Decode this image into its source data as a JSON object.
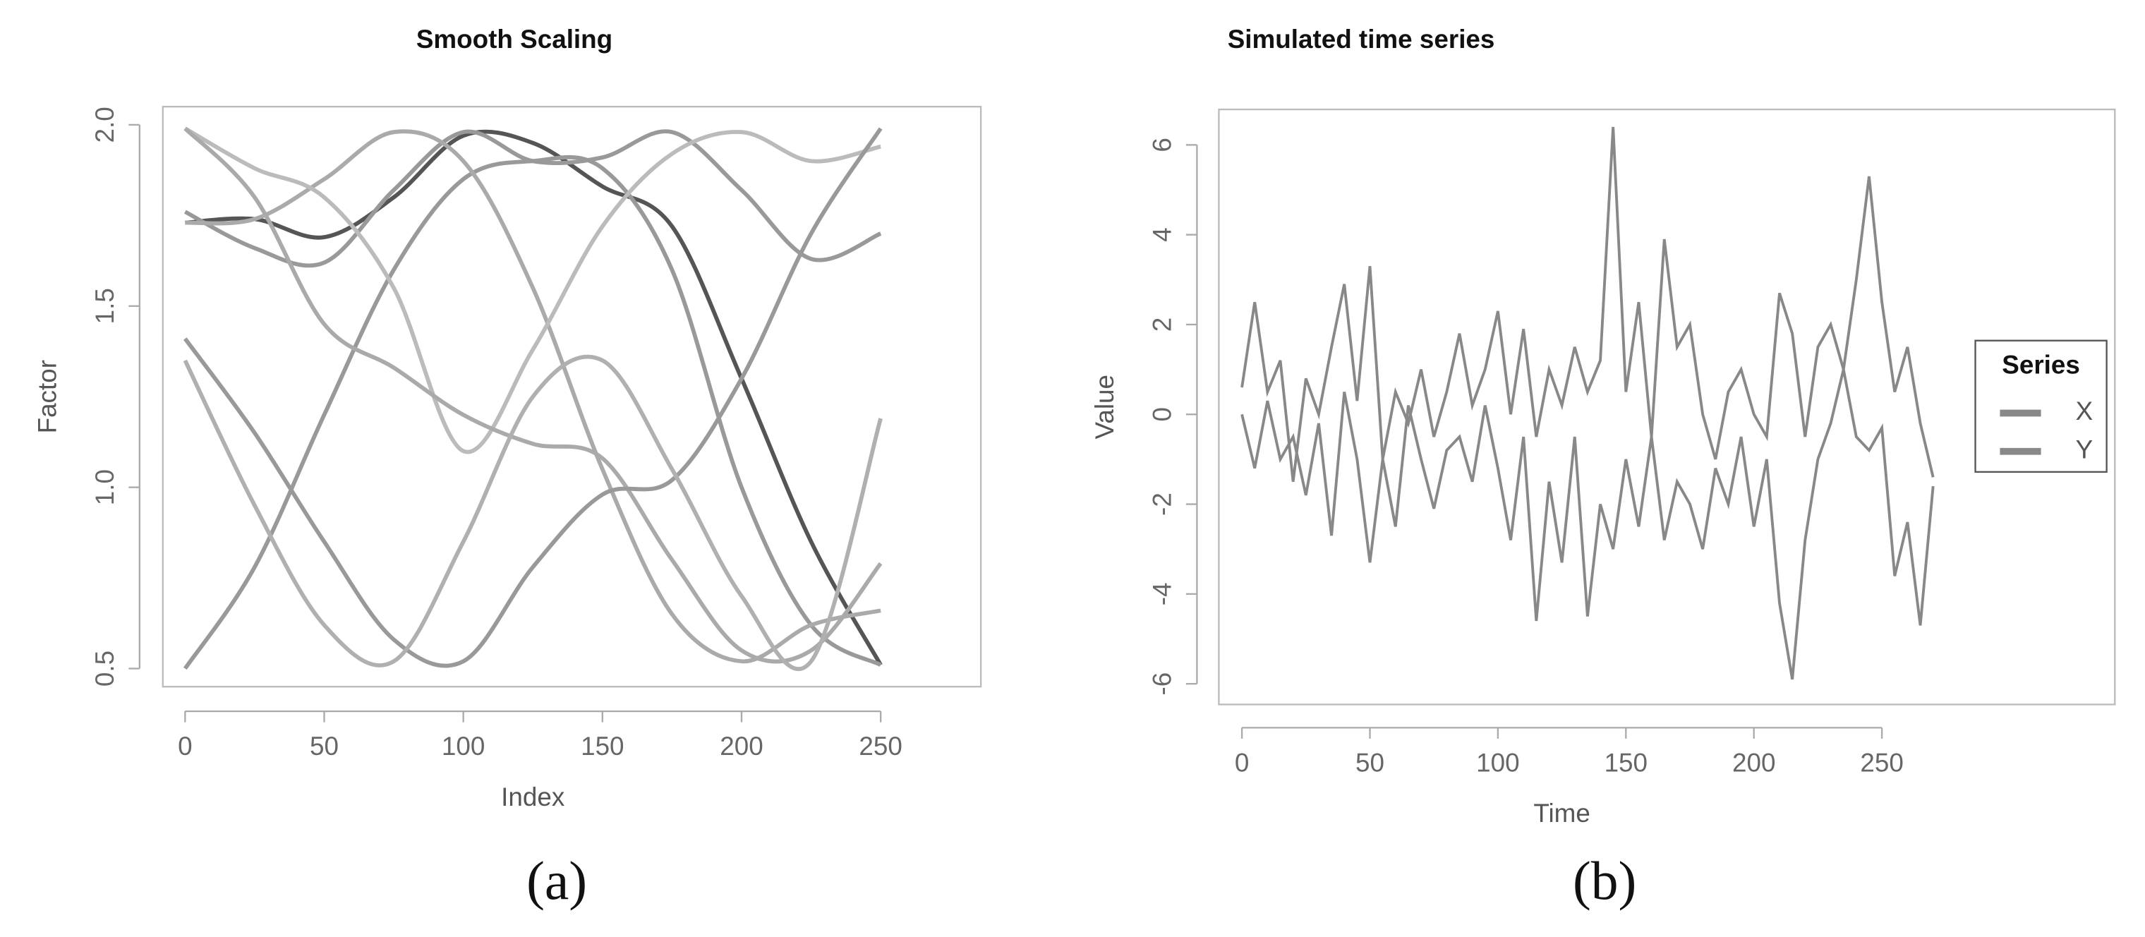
{
  "chart_data": [
    {
      "type": "line",
      "title": "Smooth Scaling",
      "x_label": "Index",
      "y_label": "Factor",
      "caption": "(a)",
      "smooth": true,
      "x": [
        0,
        25,
        50,
        75,
        100,
        125,
        150,
        175,
        200,
        225,
        250
      ],
      "xlim": [
        -8,
        286
      ],
      "ylim": [
        0.45,
        2.05
      ],
      "xticks": [
        0,
        50,
        100,
        150,
        200,
        250
      ],
      "yticks": [
        0.5,
        {
          "value": 1,
          "label": "1.0"
        },
        1.5,
        {
          "value": 2,
          "label": "2.0"
        }
      ],
      "series": [
        {
          "color": "#555555",
          "values": [
            1.73,
            1.74,
            1.69,
            1.8,
            1.97,
            1.95,
            1.83,
            1.72,
            1.3,
            0.85,
            0.51
          ]
        },
        {
          "color": "#999999",
          "values": [
            1.76,
            1.66,
            1.62,
            1.82,
            1.98,
            1.9,
            1.91,
            1.98,
            1.82,
            1.63,
            1.7
          ]
        },
        {
          "color": "#999999",
          "values": [
            0.5,
            0.78,
            1.2,
            1.6,
            1.85,
            1.9,
            1.88,
            1.6,
            1.0,
            0.62,
            0.51
          ]
        },
        {
          "color": "#aaaaaa",
          "values": [
            1.73,
            1.74,
            1.85,
            1.98,
            1.9,
            1.55,
            1.05,
            0.65,
            0.52,
            0.62,
            0.66
          ]
        },
        {
          "color": "#bbbbbb",
          "values": [
            1.99,
            1.88,
            1.8,
            1.55,
            1.1,
            1.38,
            1.72,
            1.92,
            1.98,
            1.9,
            1.94
          ]
        },
        {
          "color": "#aaaaaa",
          "values": [
            1.99,
            1.8,
            1.45,
            1.33,
            1.2,
            1.12,
            1.08,
            0.8,
            0.55,
            0.55,
            0.79
          ]
        },
        {
          "color": "#999999",
          "values": [
            1.41,
            1.15,
            0.85,
            0.58,
            0.52,
            0.78,
            0.98,
            1.02,
            1.3,
            1.7,
            1.99
          ]
        },
        {
          "color": "#b0b0b0",
          "values": [
            1.35,
            0.95,
            0.62,
            0.52,
            0.85,
            1.25,
            1.35,
            1.05,
            0.7,
            0.52,
            1.19
          ]
        }
      ]
    },
    {
      "type": "line",
      "title": "Simulated time series",
      "x_label": "Time",
      "y_label": "Value",
      "caption": "(b)",
      "legend_title": "Series",
      "legend": "right",
      "x": [
        0,
        5,
        10,
        15,
        20,
        25,
        30,
        35,
        40,
        45,
        50,
        55,
        60,
        65,
        70,
        75,
        80,
        85,
        90,
        95,
        100,
        105,
        110,
        115,
        120,
        125,
        130,
        135,
        140,
        145,
        150,
        155,
        160,
        165,
        170,
        175,
        180,
        185,
        190,
        195,
        200,
        205,
        210,
        215,
        220,
        225,
        230,
        235,
        240,
        245,
        250,
        255,
        260,
        265,
        270
      ],
      "xlim": [
        -9,
        341
      ],
      "ylim": [
        -6.46,
        6.79
      ],
      "xticks": [
        0,
        50,
        100,
        150,
        200,
        250
      ],
      "yticks": [
        -6,
        -4,
        -2,
        0,
        2,
        4,
        6
      ],
      "series": [
        {
          "name": "X",
          "color": "#888888",
          "values": [
            0.6,
            2.5,
            0.5,
            1.2,
            -1.5,
            0.8,
            0.0,
            1.5,
            2.9,
            0.3,
            3.3,
            -1.0,
            0.5,
            -0.2,
            1.0,
            -0.5,
            0.5,
            1.8,
            0.2,
            1.0,
            2.3,
            0.0,
            1.9,
            -0.5,
            1.0,
            0.2,
            1.5,
            0.5,
            1.2,
            6.4,
            0.5,
            2.5,
            -0.5,
            3.9,
            1.5,
            2.0,
            0.0,
            -1.0,
            0.5,
            1.0,
            0.0,
            -0.5,
            2.7,
            1.8,
            -0.5,
            1.5,
            2.0,
            1.0,
            3.0,
            5.3,
            2.5,
            0.5,
            1.5,
            -0.2,
            -1.4
          ]
        },
        {
          "name": "Y",
          "color": "#888888",
          "values": [
            0.0,
            -1.2,
            0.3,
            -1.0,
            -0.5,
            -1.8,
            -0.2,
            -2.7,
            0.5,
            -1.0,
            -3.3,
            -1.0,
            -2.5,
            0.2,
            -1.0,
            -2.1,
            -0.8,
            -0.5,
            -1.5,
            0.2,
            -1.2,
            -2.8,
            -0.5,
            -4.6,
            -1.5,
            -3.3,
            -0.5,
            -4.5,
            -2.0,
            -3.0,
            -1.0,
            -2.5,
            -0.5,
            -2.8,
            -1.5,
            -2.0,
            -3.0,
            -1.2,
            -2.0,
            -0.5,
            -2.5,
            -1.0,
            -4.2,
            -5.9,
            -2.8,
            -1.0,
            -0.2,
            1.0,
            -0.5,
            -0.8,
            -0.3,
            -3.6,
            -2.4,
            -4.7,
            -1.6
          ]
        }
      ]
    }
  ]
}
